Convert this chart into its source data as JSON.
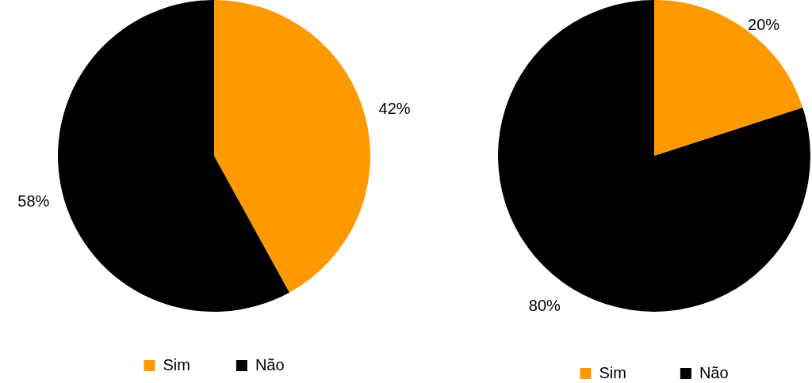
{
  "chart_data": [
    {
      "type": "pie",
      "categories": [
        "Sim",
        "Não"
      ],
      "values": [
        42,
        58
      ],
      "colors": [
        "#ff9900",
        "#000000"
      ],
      "value_labels": [
        "42%",
        "58%"
      ],
      "legend": "bottom"
    },
    {
      "type": "pie",
      "categories": [
        "Sim",
        "Não"
      ],
      "values": [
        20,
        80
      ],
      "colors": [
        "#ff9900",
        "#000000"
      ],
      "value_labels": [
        "20%",
        "80%"
      ],
      "legend": "bottom"
    }
  ]
}
